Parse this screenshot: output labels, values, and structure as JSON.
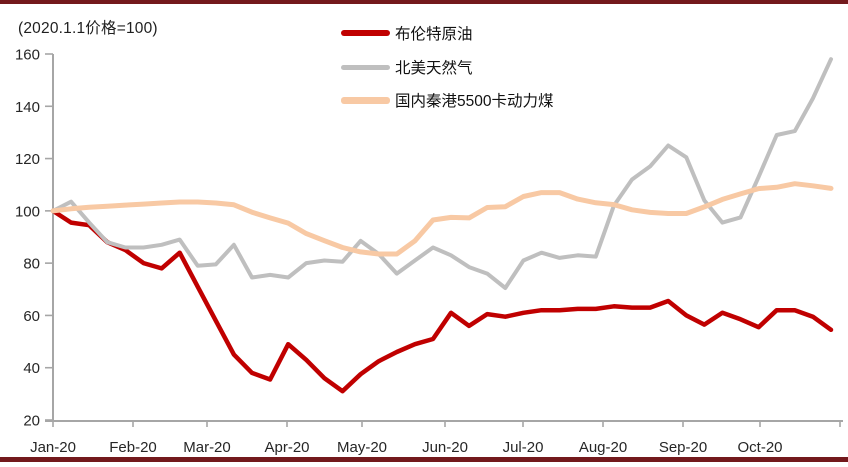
{
  "chart_data": {
    "type": "line",
    "note": "(2020.1.1价格=100)",
    "y_axis": {
      "min": 20,
      "max": 160,
      "step": 20,
      "ticks": [
        20,
        40,
        60,
        80,
        100,
        120,
        140,
        160
      ]
    },
    "x_axis": {
      "tick_labels": [
        "Jan-20",
        "Feb-20",
        "Mar-20",
        "Apr-20",
        "May-20",
        "Jun-20",
        "Jul-20",
        "Aug-20",
        "Sep-20",
        "Oct-20"
      ]
    },
    "legend_position": "top-center",
    "grid": "off",
    "series": [
      {
        "name": "布伦特原油",
        "color": "#C00000",
        "stroke_width": 4.5,
        "values": [
          100,
          95.5,
          94.5,
          88,
          85,
          80,
          78,
          84,
          71,
          58,
          45,
          38,
          35.5,
          49,
          43,
          36,
          31,
          37.5,
          42.5,
          46,
          49,
          51,
          61,
          56,
          60.5,
          59.5,
          61,
          62,
          62,
          62.5,
          62.5,
          63.5,
          63,
          63,
          65.5,
          60,
          56.5,
          61,
          58.5,
          55.5,
          62,
          62,
          59.5,
          54.5
        ]
      },
      {
        "name": "北美天然气",
        "color": "#BFBFBF",
        "stroke_width": 4,
        "values": [
          100,
          103.5,
          95.5,
          88,
          86,
          86,
          87,
          89,
          79,
          79.5,
          87,
          74.5,
          75.5,
          74.5,
          80,
          81,
          80.5,
          88.5,
          83.5,
          76,
          81,
          86,
          83,
          78.5,
          76,
          70.5,
          81,
          84,
          82,
          83,
          82.5,
          102,
          112,
          117,
          125,
          120.5,
          104,
          95.5,
          97.5,
          113,
          129,
          130.5,
          143,
          158
        ]
      },
      {
        "name": "国内秦港5500卡动力煤",
        "color": "#F8C9A4",
        "stroke_width": 5,
        "values": [
          100,
          100.8,
          101.4,
          101.8,
          102.2,
          102.6,
          103,
          103.4,
          103.4,
          103,
          102.3,
          99.5,
          97.3,
          95.3,
          91.3,
          88.6,
          86,
          84.3,
          83.5,
          83.5,
          88.5,
          96.5,
          97.5,
          97.3,
          101.3,
          101.6,
          105.5,
          107,
          107,
          104.5,
          103.1,
          102.4,
          100.4,
          99.4,
          99,
          99,
          101.5,
          104.4,
          106.5,
          108.5,
          109,
          110.4,
          109.6,
          108.6
        ]
      }
    ]
  },
  "style": {
    "accent_rule_color": "#73191C",
    "axis_color": "#A6A6A6",
    "label_color": "#262626"
  }
}
